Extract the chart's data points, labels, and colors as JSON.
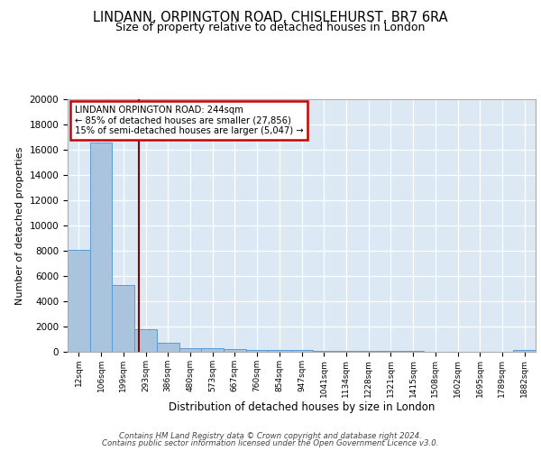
{
  "title1": "LINDANN, ORPINGTON ROAD, CHISLEHURST, BR7 6RA",
  "title2": "Size of property relative to detached houses in London",
  "xlabel": "Distribution of detached houses by size in London",
  "ylabel": "Number of detached properties",
  "categories": [
    "12sqm",
    "106sqm",
    "199sqm",
    "293sqm",
    "386sqm",
    "480sqm",
    "573sqm",
    "667sqm",
    "760sqm",
    "854sqm",
    "947sqm",
    "1041sqm",
    "1134sqm",
    "1228sqm",
    "1321sqm",
    "1415sqm",
    "1508sqm",
    "1602sqm",
    "1695sqm",
    "1789sqm",
    "1882sqm"
  ],
  "values": [
    8100,
    16600,
    5300,
    1800,
    700,
    300,
    280,
    200,
    160,
    150,
    120,
    100,
    80,
    60,
    50,
    40,
    30,
    25,
    20,
    15,
    150
  ],
  "bar_color": "#aac4de",
  "bar_edge_color": "#5b9bd5",
  "background_color": "#dce9f5",
  "vline_x": 2.68,
  "vline_color": "#8b0000",
  "annotation_title": "LINDANN ORPINGTON ROAD: 244sqm",
  "annotation_line1": "← 85% of detached houses are smaller (27,856)",
  "annotation_line2": "15% of semi-detached houses are larger (5,047) →",
  "annotation_box_color": "#ffffff",
  "annotation_box_edge": "#cc0000",
  "footer1": "Contains HM Land Registry data © Crown copyright and database right 2024.",
  "footer2": "Contains public sector information licensed under the Open Government Licence v3.0.",
  "ylim": [
    0,
    20000
  ],
  "yticks": [
    0,
    2000,
    4000,
    6000,
    8000,
    10000,
    12000,
    14000,
    16000,
    18000,
    20000
  ]
}
